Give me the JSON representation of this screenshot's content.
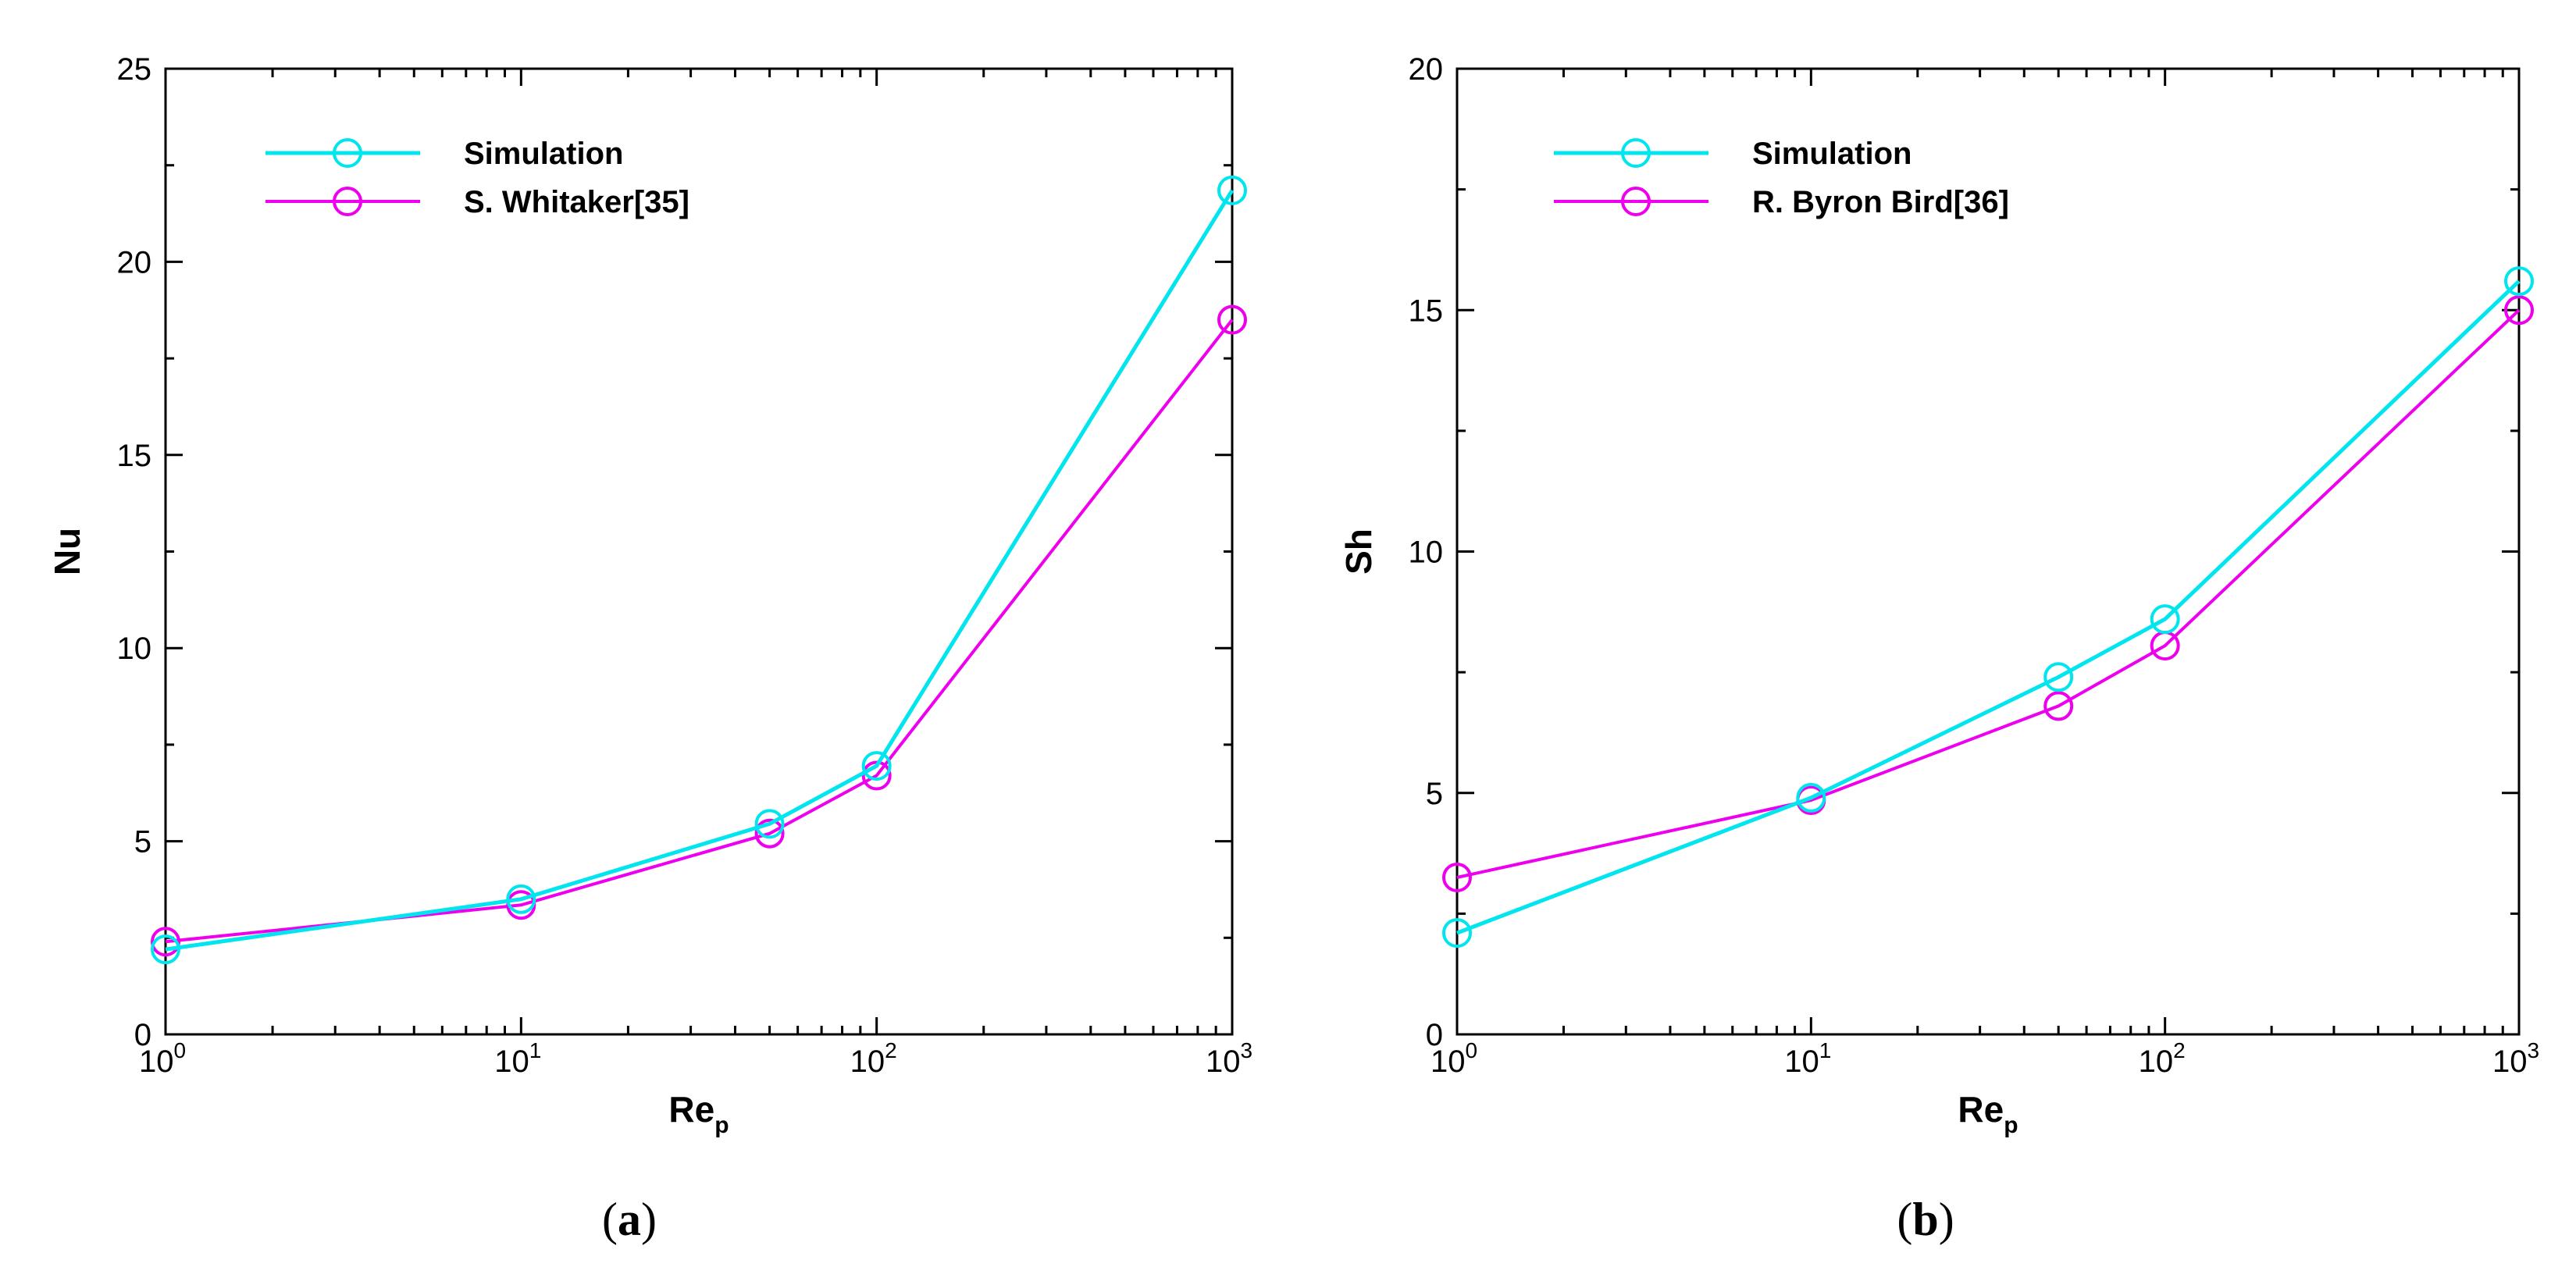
{
  "chart_data": [
    {
      "type": "line",
      "panel_label": "a",
      "xscale": "log",
      "x": [
        1,
        10,
        50,
        100,
        1000
      ],
      "xlim": [
        1,
        1000
      ],
      "xticks": [
        {
          "base": "10",
          "exp": "0"
        },
        {
          "base": "10",
          "exp": "1"
        },
        {
          "base": "10",
          "exp": "2"
        },
        {
          "base": "10",
          "exp": "3"
        }
      ],
      "xlabel": {
        "main": "Re",
        "sub": "p"
      },
      "ylabel": "Nu",
      "ylim": [
        0,
        25
      ],
      "yticks": [
        "0",
        "5",
        "10",
        "15",
        "20",
        "25"
      ],
      "legend_position": "top-left",
      "series": [
        {
          "name": "Simulation",
          "color": "#00e5ee",
          "values": [
            2.2,
            3.5,
            5.45,
            6.95,
            21.85
          ]
        },
        {
          "name": "S. Whitaker[35]",
          "color": "#ee00ee",
          "values": [
            2.4,
            3.35,
            5.2,
            6.7,
            18.5
          ]
        }
      ]
    },
    {
      "type": "line",
      "panel_label": "b",
      "xscale": "log",
      "x": [
        1,
        10,
        50,
        100,
        1000
      ],
      "xlim": [
        1,
        1000
      ],
      "xticks": [
        {
          "base": "10",
          "exp": "0"
        },
        {
          "base": "10",
          "exp": "1"
        },
        {
          "base": "10",
          "exp": "2"
        },
        {
          "base": "10",
          "exp": "3"
        }
      ],
      "xlabel": {
        "main": "Re",
        "sub": "p"
      },
      "ylabel": "Sh",
      "ylim": [
        0,
        20
      ],
      "yticks": [
        "0",
        "5",
        "10",
        "15",
        "20"
      ],
      "legend_position": "top-left",
      "series": [
        {
          "name": "Simulation",
          "color": "#00e5ee",
          "values": [
            2.1,
            4.9,
            7.4,
            8.6,
            15.6
          ]
        },
        {
          "name": "R. Byron Bird[36]",
          "color": "#ee00ee",
          "values": [
            3.25,
            4.85,
            6.8,
            8.05,
            15.0
          ]
        }
      ]
    }
  ]
}
